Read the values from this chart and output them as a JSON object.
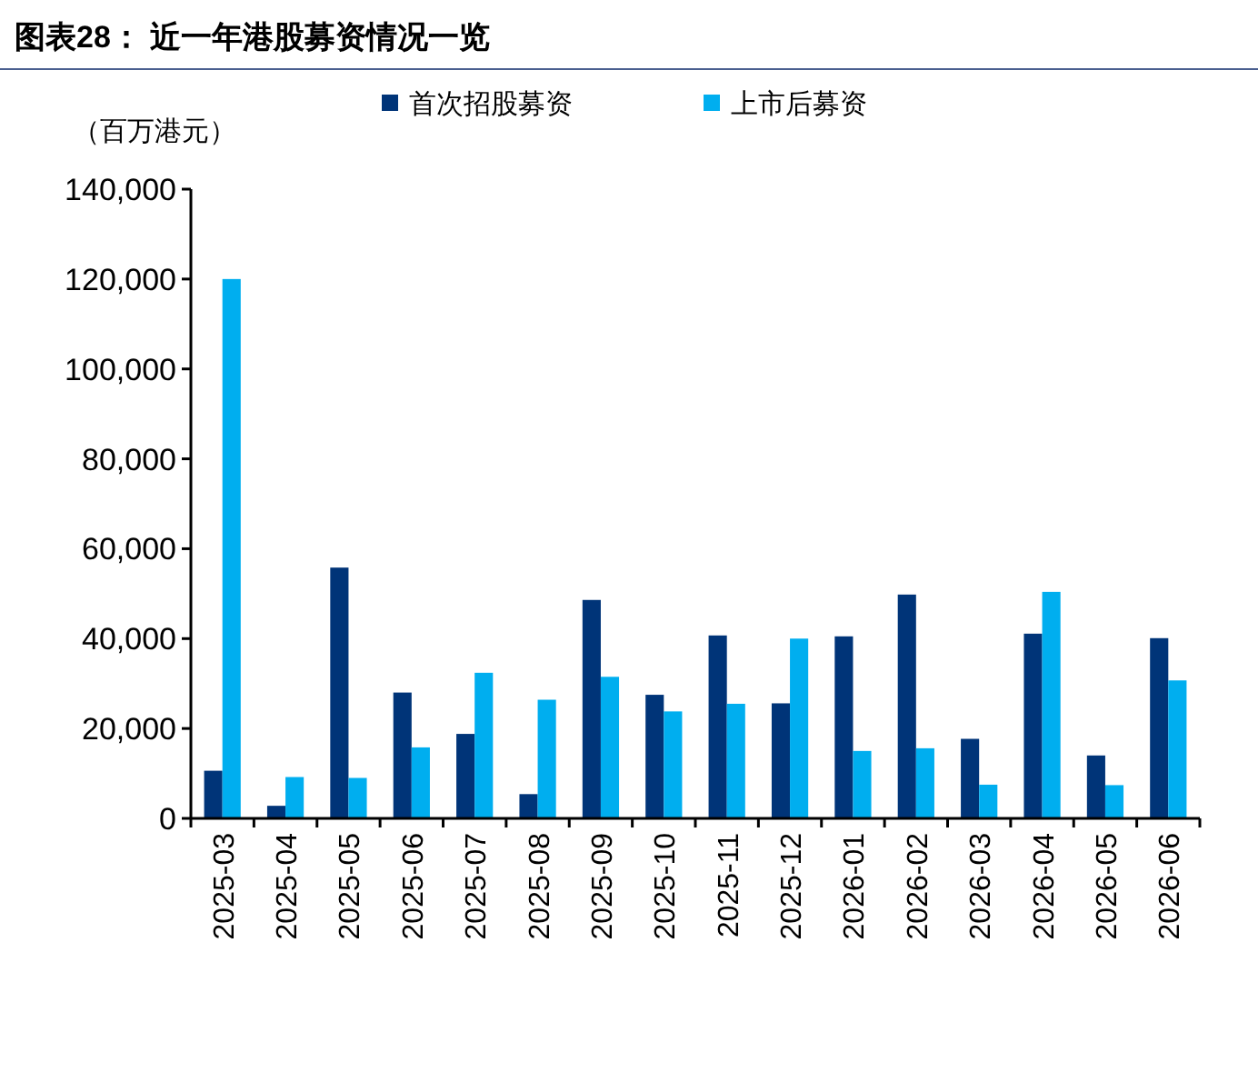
{
  "chart_data": {
    "type": "bar",
    "title": "图表28： 近一年港股募资情况一览",
    "ylabel": "（百万港元）",
    "categories": [
      "2025-03",
      "2025-04",
      "2025-05",
      "2025-06",
      "2025-07",
      "2025-08",
      "2025-09",
      "2025-10",
      "2025-11",
      "2025-12",
      "2026-01",
      "2026-02",
      "2026-03",
      "2026-04",
      "2026-05",
      "2026-06"
    ],
    "series": [
      {
        "name": "首次招股募资",
        "color": "#003478",
        "values": [
          10600,
          2800,
          55800,
          28000,
          18800,
          5400,
          48600,
          27500,
          40700,
          25600,
          40500,
          49800,
          17700,
          41100,
          14000,
          40100
        ]
      },
      {
        "name": "上市后募资",
        "color": "#00aeef",
        "values": [
          120000,
          9200,
          9000,
          15800,
          32400,
          26400,
          31500,
          23800,
          25500,
          40000,
          15000,
          15600,
          7500,
          50400,
          7400,
          30700
        ]
      }
    ],
    "ylim": [
      0,
      140000
    ],
    "yticks": [
      {
        "value": 0,
        "label": "0"
      },
      {
        "value": 20000,
        "label": "20,000"
      },
      {
        "value": 40000,
        "label": "40,000"
      },
      {
        "value": 60000,
        "label": "60,000"
      },
      {
        "value": 80000,
        "label": "80,000"
      },
      {
        "value": 100000,
        "label": "100,000"
      },
      {
        "value": 120000,
        "label": "120,000"
      },
      {
        "value": 140000,
        "label": "140,000"
      }
    ],
    "legend": "top",
    "grid": false
  }
}
